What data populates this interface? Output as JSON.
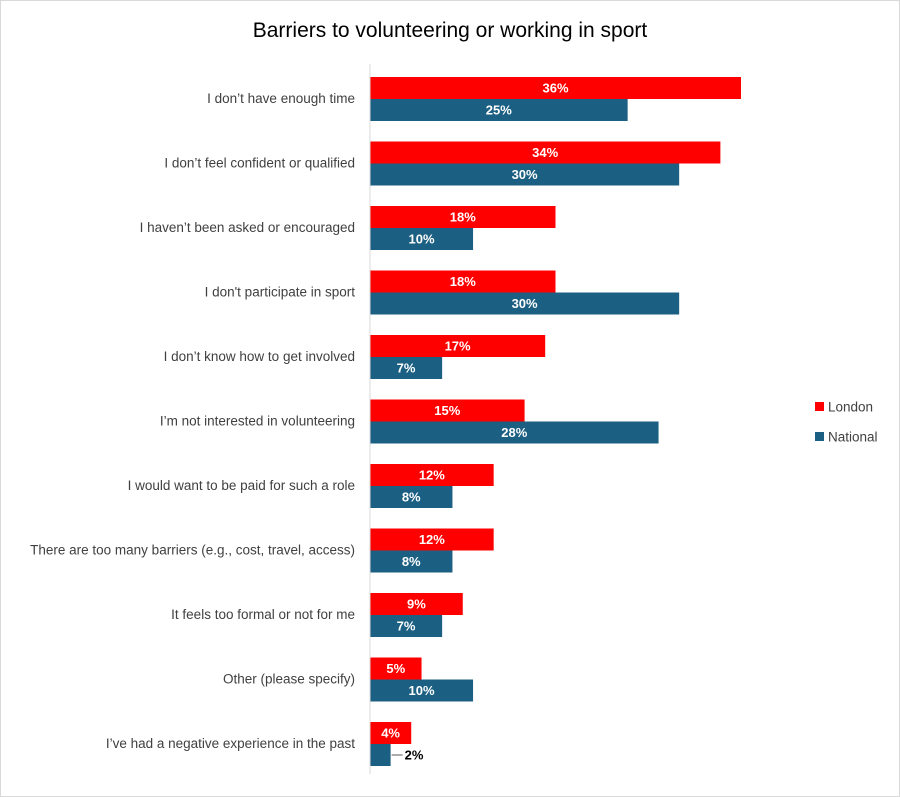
{
  "chart_data": {
    "type": "bar",
    "orientation": "horizontal",
    "title": "Barriers to volunteering or working in sport",
    "xlabel": "",
    "ylabel": "",
    "value_format": "percent",
    "xlim": [
      0,
      36
    ],
    "grid": false,
    "legend_position": "right",
    "categories": [
      "I don’t have enough time",
      "I don’t feel confident or qualified",
      "I haven’t been asked or encouraged",
      "I don't participate in sport",
      "I don’t know how to get involved",
      "I’m not interested in volunteering",
      "I would want to be paid for such a role",
      "There are too many barriers (e.g., cost, travel, access)",
      "It feels too formal or not for me",
      "Other (please specify)",
      "I’ve had a negative experience in the past"
    ],
    "series": [
      {
        "name": "London",
        "color": "#ff0000",
        "values": [
          36,
          34,
          18,
          18,
          17,
          15,
          12,
          12,
          9,
          5,
          4
        ],
        "labels": [
          "36%",
          "34%",
          "18%",
          "18%",
          "17%",
          "15%",
          "12%",
          "12%",
          "9%",
          "5%",
          "4%"
        ]
      },
      {
        "name": "National",
        "color": "#1b5f82",
        "values": [
          25,
          30,
          10,
          30,
          7,
          28,
          8,
          8,
          7,
          10,
          2
        ],
        "labels": [
          "25%",
          "30%",
          "10%",
          "30%",
          "7%",
          "28%",
          "8%",
          "8%",
          "7%",
          "10%",
          "2%"
        ]
      }
    ]
  }
}
